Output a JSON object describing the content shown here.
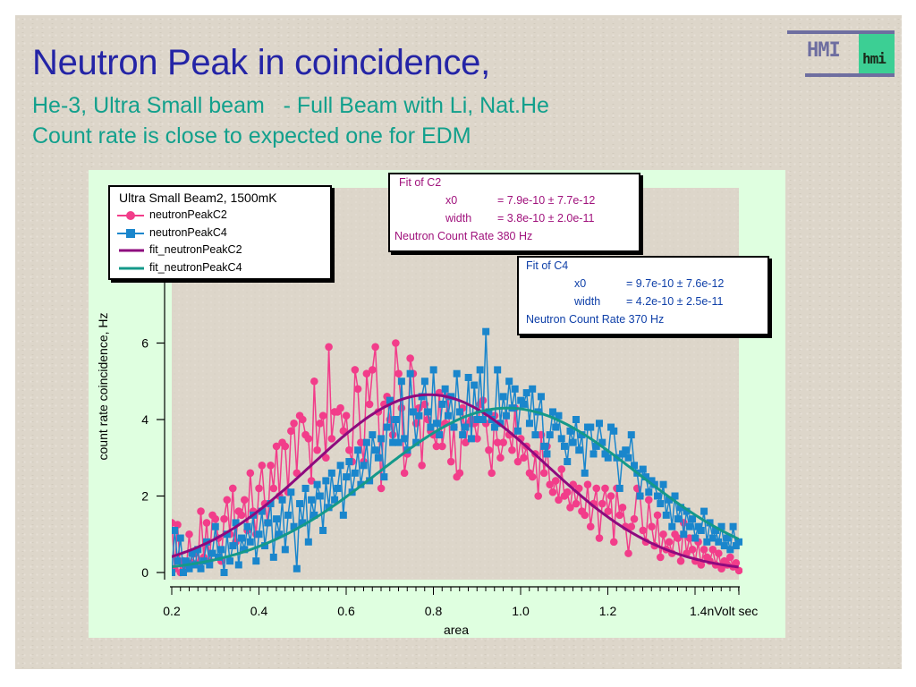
{
  "slide": {
    "title": "Neutron Peak in coincidence,",
    "subtitle_lines": [
      "He-3, Ultra Small beam   - Full Beam with Li, Nat.He",
      "Count rate is close to expected one for EDM"
    ],
    "logo": {
      "text": "HMI",
      "small_text": "hmi"
    },
    "colors": {
      "title": "#2424a6",
      "subtitle": "#12a08c",
      "background": "#ddd6ca",
      "chart_frame": "#dfffe0"
    }
  },
  "legend": {
    "title": "Ultra Small Beam2, 1500mK",
    "entries": [
      {
        "label": "neutronPeakC2",
        "kind": "marker-circle",
        "color": "#f23d8a"
      },
      {
        "label": "neutronPeakC4",
        "kind": "marker-square",
        "color": "#1a86cc"
      },
      {
        "label": "fit_neutronPeakC2",
        "kind": "line",
        "color": "#8e0a7e"
      },
      {
        "label": "fit_neutronPeakC4",
        "kind": "line",
        "color": "#14998a"
      }
    ]
  },
  "fit_boxes": [
    {
      "title": "Fit of C2",
      "params": [
        {
          "name": "x0",
          "value": "= 7.9e-10 ± 7.7e-12"
        },
        {
          "name": "width",
          "value": "= 3.8e-10 ± 2.0e-11"
        }
      ],
      "rate": "Neutron Count Rate 380 Hz"
    },
    {
      "title": "Fit of C4",
      "params": [
        {
          "name": "x0",
          "value": "= 9.7e-10 ± 7.6e-12"
        },
        {
          "name": "width",
          "value": "= 4.2e-10 ± 2.5e-11"
        }
      ],
      "rate": "Neutron Count  Rate 370 Hz"
    }
  ],
  "chart_data": {
    "type": "scatter",
    "title": "",
    "xlabel": "area",
    "ylabel": "count rate coincidence, Hz",
    "x_unit_label": "nVolt sec",
    "xlim": [
      0.19,
      1.5
    ],
    "ylim": [
      -0.15,
      10.2
    ],
    "x_ticks": [
      0.2,
      0.4,
      0.6,
      0.8,
      1.0,
      1.2,
      1.4
    ],
    "x_tick_labels": [
      "0.2",
      "0.4",
      "0.6",
      "0.8",
      "1.0",
      "1.2",
      "1.4nVolt sec"
    ],
    "y_ticks": [
      0,
      2,
      4,
      6
    ],
    "y_tick_labels": [
      "0",
      "2",
      "4",
      "6"
    ],
    "grid": false,
    "legend_position": "top-left",
    "x": {
      "start": 0.2,
      "step": 0.00667,
      "count": 196
    },
    "series": [
      {
        "name": "neutronPeakC2",
        "style": "line+circle",
        "color": "#f23d8a",
        "values": [
          1.3,
          0.1,
          1.25,
          0.0,
          0.3,
          0.1,
          1.0,
          0.25,
          0.5,
          0.2,
          1.6,
          0.4,
          1.3,
          0.3,
          1.5,
          1.4,
          0.9,
          0.3,
          1.4,
          1.9,
          1.0,
          2.2,
          0.8,
          1.6,
          1.5,
          1.9,
          1.1,
          2.6,
          1.6,
          1.0,
          2.2,
          2.8,
          1.8,
          1.3,
          2.8,
          2.2,
          3.3,
          2.0,
          3.4,
          3.3,
          2.1,
          3.7,
          3.9,
          2.6,
          4.1,
          4.0,
          3.6,
          3.5,
          2.4,
          5.0,
          3.2,
          3.9,
          4.1,
          3.0,
          5.9,
          3.5,
          4.2,
          4.2,
          4.3,
          3.7,
          4.1,
          3.2,
          2.9,
          5.3,
          4.8,
          3.4,
          2.9,
          5.2,
          4.4,
          5.3,
          5.9,
          4.2,
          2.2,
          4.4,
          4.6,
          4.0,
          3.6,
          6.0,
          5.2,
          4.3,
          2.6,
          3.1,
          5.6,
          5.2,
          3.9,
          4.3,
          2.8,
          4.4,
          4.0,
          3.7,
          3.6,
          3.3,
          4.7,
          3.3,
          3.9,
          4.6,
          2.9,
          3.8,
          2.5,
          2.6,
          4.3,
          3.4,
          3.9,
          4.0,
          3.9,
          3.5,
          4.4,
          4.5,
          3.9,
          3.2,
          2.6,
          4.1,
          3.4,
          3.0,
          3.4,
          4.1,
          3.6,
          3.2,
          4.3,
          2.9,
          3.5,
          3.0,
          3.3,
          2.6,
          2.5,
          3.1,
          2.0,
          3.6,
          2.6,
          3.3,
          2.3,
          2.1,
          2.4,
          1.9,
          2.7,
          2.0,
          2.1,
          1.7,
          2.3,
          1.8,
          2.2,
          1.6,
          1.5,
          2.3,
          1.2,
          1.8,
          2.2,
          0.9,
          1.8,
          2.2,
          1.6,
          2.0,
          0.8,
          2.2,
          1.5,
          1.7,
          1.2,
          0.5,
          1.2,
          1.4,
          2.2,
          2.0,
          1.1,
          0.8,
          1.9,
          1.2,
          0.7,
          1.5,
          0.4,
          1.0,
          0.6,
          0.8,
          0.5,
          1.0,
          0.9,
          0.3,
          1.3,
          0.5,
          0.9,
          0.6,
          0.3,
          0.8,
          0.2,
          0.6,
          0.4,
          0.3,
          0.6,
          0.2,
          0.5,
          0.1,
          0.3,
          0.2,
          0.4,
          0.15,
          0.25,
          0.05
        ]
      },
      {
        "name": "neutronPeakC4",
        "style": "line+square",
        "color": "#1a86cc",
        "values": [
          0.0,
          1.1,
          0.3,
          0.9,
          0.0,
          0.3,
          0.1,
          0.5,
          0.2,
          0.6,
          0.1,
          0.3,
          0.8,
          0.2,
          0.5,
          1.2,
          0.4,
          0.6,
          0.0,
          1.0,
          0.3,
          0.7,
          1.3,
          0.2,
          0.9,
          0.6,
          1.2,
          0.8,
          1.5,
          0.3,
          1.0,
          1.6,
          0.7,
          1.3,
          1.8,
          0.4,
          1.4,
          1.0,
          1.9,
          0.6,
          1.5,
          2.1,
          1.2,
          0.1,
          1.8,
          1.3,
          2.2,
          0.8,
          1.9,
          1.5,
          2.3,
          2.0,
          1.1,
          2.4,
          1.7,
          2.6,
          1.9,
          2.2,
          2.8,
          1.5,
          2.5,
          2.9,
          2.1,
          2.6,
          3.2,
          2.3,
          2.8,
          3.4,
          2.4,
          3.6,
          3.2,
          3.0,
          3.5,
          2.5,
          3.8,
          4.5,
          3.4,
          4.0,
          3.4,
          5.0,
          3.5,
          3.2,
          5.2,
          4.2,
          3.4,
          4.1,
          4.6,
          5.0,
          4.2,
          3.8,
          5.3,
          3.9,
          3.6,
          4.4,
          4.8,
          4.1,
          4.6,
          3.8,
          5.2,
          4.2,
          3.6,
          3.8,
          5.1,
          3.5,
          4.9,
          4.0,
          5.3,
          4.0,
          6.3,
          4.2,
          4.0,
          3.8,
          5.3,
          3.9,
          4.6,
          4.1,
          5.0,
          4.3,
          4.8,
          3.7,
          4.5,
          4.4,
          4.7,
          3.9,
          4.8,
          3.6,
          4.2,
          4.6,
          3.3,
          3.1,
          3.6,
          4.2,
          3.8,
          4.1,
          3.5,
          3.3,
          2.9,
          3.7,
          3.4,
          4.0,
          3.2,
          3.6,
          2.6,
          3.8,
          3.8,
          3.1,
          3.3,
          3.9,
          3.4,
          3.1,
          3.0,
          3.8,
          3.7,
          3.0,
          2.2,
          3.1,
          3.2,
          3.0,
          3.6,
          2.8,
          2.6,
          2.0,
          2.7,
          2.5,
          2.1,
          2.4,
          2.3,
          2.0,
          1.8,
          2.3,
          1.5,
          1.9,
          1.2,
          2.0,
          1.4,
          1.7,
          1.0,
          1.6,
          1.2,
          1.4,
          0.9,
          1.2,
          1.1,
          1.6,
          0.8,
          1.3,
          0.9,
          1.1,
          0.8,
          1.2,
          0.7,
          0.9,
          0.6,
          1.2,
          0.7,
          0.8
        ]
      },
      {
        "name": "fit_neutronPeakC2",
        "style": "line",
        "color": "#8e0a7e",
        "model": "gaussian",
        "amplitude": 4.65,
        "x0": 0.79,
        "width": 0.38
      },
      {
        "name": "fit_neutronPeakC4",
        "style": "line",
        "color": "#14998a",
        "model": "gaussian",
        "amplitude": 4.3,
        "x0": 0.97,
        "width": 0.42
      }
    ]
  }
}
